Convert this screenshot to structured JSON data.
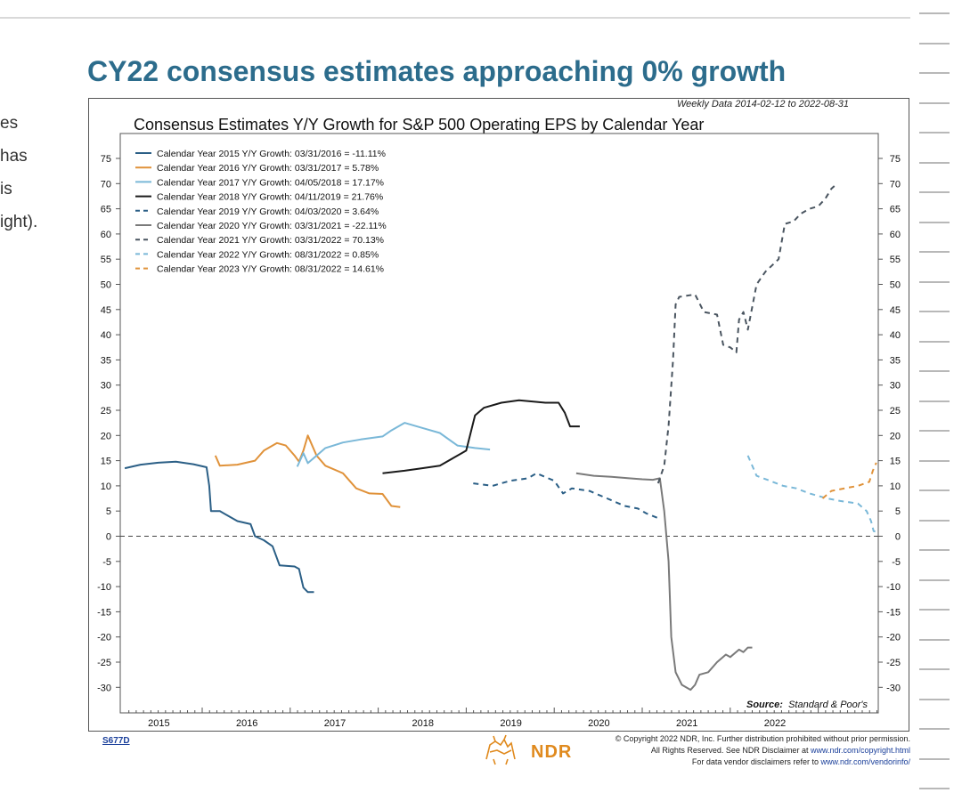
{
  "page": {
    "headline": "CY22 consensus estimates approaching 0% growth",
    "side_fragments": [
      "es",
      "has",
      " is",
      "ight)."
    ]
  },
  "chart_data": {
    "type": "line",
    "title": "Consensus Estimates Y/Y Growth for S&P 500 Operating EPS by Calendar Year",
    "subtitle": "Weekly Data 2014-02-12 to 2022-08-31",
    "source_label": "Source:",
    "source_value": "Standard & Poor's",
    "chart_code": "S677D",
    "ylim": [
      -35,
      78
    ],
    "yticks": [
      75,
      70,
      65,
      60,
      55,
      50,
      45,
      40,
      35,
      30,
      25,
      20,
      15,
      10,
      5,
      0,
      -5,
      -10,
      -15,
      -20,
      -25,
      -30
    ],
    "xlim": [
      2014.1,
      2022.72
    ],
    "xticks": [
      2015,
      2016,
      2017,
      2018,
      2019,
      2020,
      2021,
      2022
    ],
    "zero_line": "dashed",
    "legend_position": "top-left",
    "series": [
      {
        "name": "Calendar Year 2015 Y/Y Growth:  03/31/2016 = -11.11%",
        "color": "#2b5f86",
        "dash": "solid",
        "points": [
          [
            2014.12,
            13.5
          ],
          [
            2014.3,
            14.2
          ],
          [
            2014.5,
            14.6
          ],
          [
            2014.7,
            14.8
          ],
          [
            2014.9,
            14.3
          ],
          [
            2015.05,
            13.7
          ],
          [
            2015.08,
            10
          ],
          [
            2015.1,
            5
          ],
          [
            2015.2,
            5
          ],
          [
            2015.3,
            4
          ],
          [
            2015.4,
            3
          ],
          [
            2015.55,
            2.4
          ],
          [
            2015.6,
            0
          ],
          [
            2015.7,
            -0.8
          ],
          [
            2015.8,
            -2
          ],
          [
            2015.88,
            -5.8
          ],
          [
            2016.05,
            -6
          ],
          [
            2016.1,
            -6.5
          ],
          [
            2016.15,
            -10.2
          ],
          [
            2016.2,
            -11.1
          ],
          [
            2016.27,
            -11.1
          ]
        ]
      },
      {
        "name": "Calendar Year 2016 Y/Y Growth:  03/31/2017 = 5.78%",
        "color": "#e0923a",
        "dash": "solid",
        "points": [
          [
            2015.15,
            16
          ],
          [
            2015.2,
            14
          ],
          [
            2015.4,
            14.2
          ],
          [
            2015.6,
            15
          ],
          [
            2015.7,
            17
          ],
          [
            2015.85,
            18.5
          ],
          [
            2015.95,
            18
          ],
          [
            2016.05,
            16
          ],
          [
            2016.1,
            14.8
          ],
          [
            2016.15,
            17
          ],
          [
            2016.2,
            20
          ],
          [
            2016.3,
            16
          ],
          [
            2016.4,
            14
          ],
          [
            2016.6,
            12.5
          ],
          [
            2016.75,
            9.5
          ],
          [
            2016.9,
            8.5
          ],
          [
            2017.05,
            8.4
          ],
          [
            2017.15,
            6
          ],
          [
            2017.25,
            5.8
          ]
        ]
      },
      {
        "name": "Calendar Year 2017 Y/Y Growth:  04/05/2018 = 17.17%",
        "color": "#7ab8d8",
        "dash": "solid",
        "points": [
          [
            2016.08,
            13.8
          ],
          [
            2016.15,
            16.5
          ],
          [
            2016.2,
            14.5
          ],
          [
            2016.4,
            17.5
          ],
          [
            2016.6,
            18.6
          ],
          [
            2016.8,
            19.2
          ],
          [
            2017.05,
            19.8
          ],
          [
            2017.15,
            21
          ],
          [
            2017.3,
            22.5
          ],
          [
            2017.5,
            21.5
          ],
          [
            2017.7,
            20.5
          ],
          [
            2017.9,
            18
          ],
          [
            2018.1,
            17.5
          ],
          [
            2018.27,
            17.2
          ]
        ]
      },
      {
        "name": "Calendar Year 2018 Y/Y Growth:  04/11/2019 = 21.76%",
        "color": "#1a1a1a",
        "dash": "solid",
        "points": [
          [
            2017.05,
            12.5
          ],
          [
            2017.3,
            13
          ],
          [
            2017.5,
            13.5
          ],
          [
            2017.7,
            14
          ],
          [
            2017.85,
            15.5
          ],
          [
            2018.0,
            17
          ],
          [
            2018.1,
            24
          ],
          [
            2018.2,
            25.5
          ],
          [
            2018.4,
            26.5
          ],
          [
            2018.6,
            27
          ],
          [
            2018.9,
            26.5
          ],
          [
            2019.05,
            26.5
          ],
          [
            2019.12,
            24.5
          ],
          [
            2019.18,
            21.8
          ],
          [
            2019.29,
            21.8
          ]
        ]
      },
      {
        "name": "Calendar Year 2019 Y/Y Growth:  04/03/2020 = 3.64%",
        "color": "#2b5f86",
        "dash": "dashed",
        "points": [
          [
            2018.08,
            10.5
          ],
          [
            2018.3,
            10
          ],
          [
            2018.5,
            11
          ],
          [
            2018.7,
            11.5
          ],
          [
            2018.8,
            12.5
          ],
          [
            2019.0,
            11
          ],
          [
            2019.1,
            8.5
          ],
          [
            2019.2,
            9.5
          ],
          [
            2019.4,
            9
          ],
          [
            2019.6,
            7.5
          ],
          [
            2019.8,
            6
          ],
          [
            2019.95,
            5.5
          ],
          [
            2020.05,
            4.5
          ],
          [
            2020.18,
            3.6
          ]
        ]
      },
      {
        "name": "Calendar Year 2020 Y/Y Growth:  03/31/2021 = -22.11%",
        "color": "#7a7a7a",
        "dash": "solid",
        "points": [
          [
            2019.25,
            12.5
          ],
          [
            2019.45,
            12
          ],
          [
            2019.65,
            11.8
          ],
          [
            2019.85,
            11.5
          ],
          [
            2020.0,
            11.3
          ],
          [
            2020.12,
            11.2
          ],
          [
            2020.2,
            11.5
          ],
          [
            2020.25,
            5
          ],
          [
            2020.3,
            -5
          ],
          [
            2020.33,
            -20
          ],
          [
            2020.38,
            -27
          ],
          [
            2020.45,
            -29.5
          ],
          [
            2020.55,
            -30.5
          ],
          [
            2020.6,
            -29.5
          ],
          [
            2020.65,
            -27.5
          ],
          [
            2020.75,
            -27
          ],
          [
            2020.85,
            -25
          ],
          [
            2020.95,
            -23.5
          ],
          [
            2021.0,
            -24
          ],
          [
            2021.1,
            -22.5
          ],
          [
            2021.15,
            -23
          ],
          [
            2021.2,
            -22.1
          ],
          [
            2021.25,
            -22.1
          ]
        ]
      },
      {
        "name": "Calendar Year 2021 Y/Y Growth:  03/31/2022 = 70.13%",
        "color": "#4a5560",
        "dash": "dashed",
        "points": [
          [
            2020.18,
            10.5
          ],
          [
            2020.25,
            14
          ],
          [
            2020.3,
            22
          ],
          [
            2020.35,
            35
          ],
          [
            2020.38,
            46
          ],
          [
            2020.42,
            47.5
          ],
          [
            2020.6,
            48
          ],
          [
            2020.7,
            44.5
          ],
          [
            2020.85,
            44
          ],
          [
            2020.92,
            38
          ],
          [
            2021.0,
            37.5
          ],
          [
            2021.07,
            36.5
          ],
          [
            2021.1,
            43
          ],
          [
            2021.15,
            44.5
          ],
          [
            2021.2,
            41
          ],
          [
            2021.3,
            50
          ],
          [
            2021.4,
            52.5
          ],
          [
            2021.55,
            55
          ],
          [
            2021.62,
            62
          ],
          [
            2021.72,
            62.5
          ],
          [
            2021.8,
            64
          ],
          [
            2021.9,
            65
          ],
          [
            2022.0,
            65.5
          ],
          [
            2022.08,
            67
          ],
          [
            2022.15,
            69
          ],
          [
            2022.22,
            70.1
          ]
        ]
      },
      {
        "name": "Calendar Year 2022 Y/Y Growth:  08/31/2022 = 0.85%",
        "color": "#7ab8d8",
        "dash": "dashed",
        "points": [
          [
            2021.2,
            16
          ],
          [
            2021.3,
            12
          ],
          [
            2021.45,
            11
          ],
          [
            2021.6,
            10
          ],
          [
            2021.75,
            9.5
          ],
          [
            2021.9,
            8.5
          ],
          [
            2022.1,
            7.5
          ],
          [
            2022.25,
            7
          ],
          [
            2022.45,
            6.5
          ],
          [
            2022.55,
            5
          ],
          [
            2022.6,
            3
          ],
          [
            2022.63,
            1
          ],
          [
            2022.66,
            0.85
          ]
        ]
      },
      {
        "name": "Calendar Year 2023 Y/Y Growth:  08/31/2022 = 14.61%",
        "color": "#e0923a",
        "dash": "dashed",
        "points": [
          [
            2022.05,
            7.5
          ],
          [
            2022.15,
            9
          ],
          [
            2022.3,
            9.5
          ],
          [
            2022.45,
            10
          ],
          [
            2022.58,
            10.8
          ],
          [
            2022.62,
            13
          ],
          [
            2022.66,
            14.6
          ]
        ]
      }
    ]
  },
  "footer": {
    "logo_text": "NDR",
    "copyright_line1": "© Copyright 2022 NDR, Inc. Further distribution prohibited without prior permission.",
    "copyright_line2_a": "All Rights Reserved. See NDR Disclaimer at ",
    "copyright_line2_link": "www.ndr.com/copyright.html",
    "copyright_line3_a": "For data vendor disclaimers refer to ",
    "copyright_line3_link": "www.ndr.com/vendorinfo/"
  }
}
